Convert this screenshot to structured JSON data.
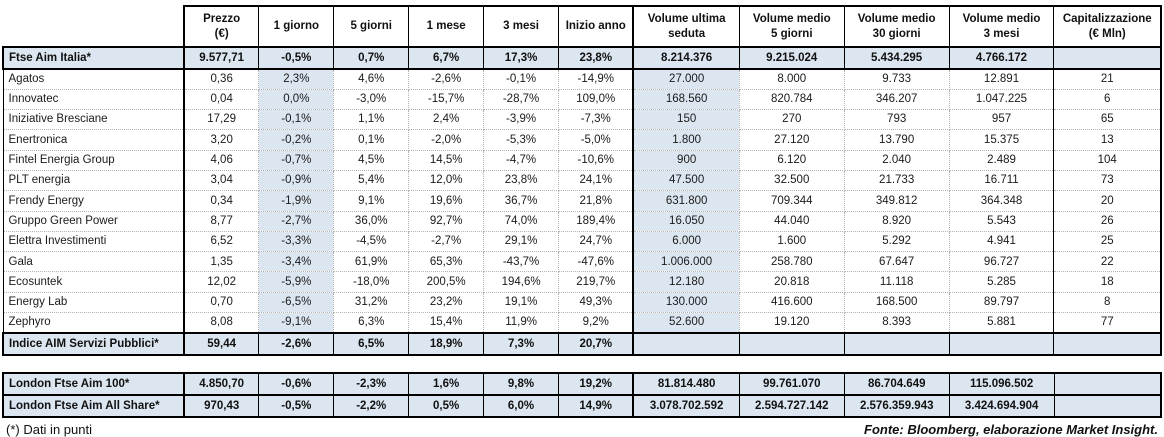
{
  "chart_data": {
    "type": "table",
    "columns": [
      "",
      "Prezzo\n(€)",
      "1 giorno",
      "5 giorni",
      "1 mese",
      "3 mesi",
      "Inizio anno",
      "Volume ultima\nseduta",
      "Volume medio\n5 giorni",
      "Volume medio\n30 giorni",
      "Volume medio\n3 mesi",
      "Capitalizzazione\n(€ Mln)"
    ],
    "highlight_columns": [
      3,
      8
    ],
    "highlight_color": "#dce6f1",
    "rows": [
      {
        "type": "index",
        "cells": [
          "Ftse Aim Italia*",
          "9.577,71",
          "-0,5%",
          "0,7%",
          "6,7%",
          "17,3%",
          "23,8%",
          "8.214.376",
          "9.215.024",
          "5.434.295",
          "4.766.172",
          ""
        ]
      },
      {
        "type": "data",
        "cells": [
          "Agatos",
          "0,36",
          "2,3%",
          "4,6%",
          "-2,6%",
          "-0,1%",
          "-14,9%",
          "27.000",
          "8.000",
          "9.733",
          "12.891",
          "21"
        ]
      },
      {
        "type": "data",
        "cells": [
          "Innovatec",
          "0,04",
          "0,0%",
          "-3,0%",
          "-15,7%",
          "-28,7%",
          "109,0%",
          "168.560",
          "820.784",
          "346.207",
          "1.047.225",
          "6"
        ]
      },
      {
        "type": "data",
        "cells": [
          "Iniziative Bresciane",
          "17,29",
          "-0,1%",
          "1,1%",
          "2,4%",
          "-3,9%",
          "-7,3%",
          "150",
          "270",
          "793",
          "957",
          "65"
        ]
      },
      {
        "type": "data",
        "cells": [
          "Enertronica",
          "3,20",
          "-0,2%",
          "0,1%",
          "-2,0%",
          "-5,3%",
          "-5,0%",
          "1.800",
          "27.120",
          "13.790",
          "15.375",
          "13"
        ]
      },
      {
        "type": "data",
        "cells": [
          "Fintel Energia Group",
          "4,06",
          "-0,7%",
          "4,5%",
          "14,5%",
          "-4,7%",
          "-10,6%",
          "900",
          "6.120",
          "2.040",
          "2.489",
          "104"
        ]
      },
      {
        "type": "data",
        "cells": [
          "PLT energia",
          "3,04",
          "-0,9%",
          "5,4%",
          "12,0%",
          "23,8%",
          "24,1%",
          "47.500",
          "32.500",
          "21.733",
          "16.711",
          "73"
        ]
      },
      {
        "type": "data",
        "cells": [
          "Frendy Energy",
          "0,34",
          "-1,9%",
          "9,1%",
          "19,6%",
          "36,7%",
          "21,8%",
          "631.800",
          "709.344",
          "349.812",
          "364.348",
          "20"
        ]
      },
      {
        "type": "data",
        "cells": [
          "Gruppo Green Power",
          "8,77",
          "-2,7%",
          "36,0%",
          "92,7%",
          "74,0%",
          "189,4%",
          "16.050",
          "44.040",
          "8.920",
          "5.543",
          "26"
        ]
      },
      {
        "type": "data",
        "cells": [
          "Elettra Investimenti",
          "6,52",
          "-3,3%",
          "-4,5%",
          "-2,7%",
          "29,1%",
          "24,7%",
          "6.000",
          "1.600",
          "5.292",
          "4.941",
          "25"
        ]
      },
      {
        "type": "data",
        "cells": [
          "Gala",
          "1,35",
          "-3,4%",
          "61,9%",
          "65,3%",
          "-43,7%",
          "-47,6%",
          "1.006.000",
          "258.780",
          "67.647",
          "96.727",
          "22"
        ]
      },
      {
        "type": "data",
        "cells": [
          "Ecosuntek",
          "12,02",
          "-5,9%",
          "-18,0%",
          "200,5%",
          "194,6%",
          "219,7%",
          "12.180",
          "20.818",
          "11.118",
          "5.285",
          "18"
        ]
      },
      {
        "type": "data",
        "cells": [
          "Energy Lab",
          "0,70",
          "-6,5%",
          "31,2%",
          "23,2%",
          "19,1%",
          "49,3%",
          "130.000",
          "416.600",
          "168.500",
          "89.797",
          "8"
        ]
      },
      {
        "type": "data",
        "cells": [
          "Zephyro",
          "8,08",
          "-9,1%",
          "6,3%",
          "15,4%",
          "11,9%",
          "9,2%",
          "52.600",
          "19.120",
          "8.393",
          "5.881",
          "77"
        ]
      },
      {
        "type": "index",
        "cells": [
          "Indice AIM Servizi Pubblici*",
          "59,44",
          "-2,6%",
          "6,5%",
          "18,9%",
          "7,3%",
          "20,7%",
          "",
          "",
          "",
          "",
          ""
        ]
      }
    ],
    "london_rows": [
      {
        "cells": [
          "London Ftse Aim 100*",
          "4.850,70",
          "-0,6%",
          "-2,3%",
          "1,6%",
          "9,8%",
          "19,2%",
          "81.814.480",
          "99.761.070",
          "86.704.649",
          "115.096.502",
          ""
        ]
      },
      {
        "cells": [
          "London Ftse Aim All Share*",
          "970,43",
          "-0,5%",
          "-2,2%",
          "0,5%",
          "6,0%",
          "14,9%",
          "3.078.702.592",
          "2.594.727.142",
          "2.576.359.943",
          "3.424.694.904",
          ""
        ]
      }
    ]
  },
  "footer": {
    "note": "(*) Dati in punti",
    "source": "Fonte: Bloomberg, elaborazione Market Insight."
  },
  "colors": {
    "highlight": "#dce6f1",
    "border": "#000000"
  }
}
